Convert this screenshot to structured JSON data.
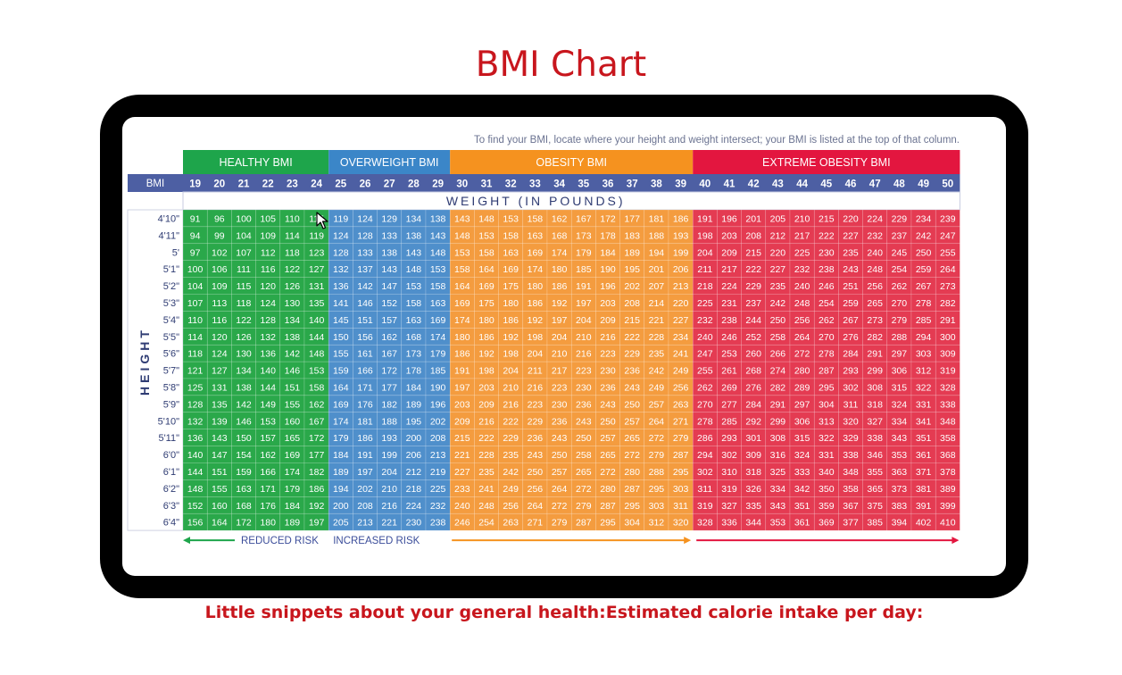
{
  "page": {
    "title": "BMI Chart",
    "footer": "Little snippets about your general health:Estimated calorie intake per day:"
  },
  "chart_data": {
    "type": "table",
    "instruction": "To find your BMI, locate where your height and weight intersect; your BMI is listed at the top of that column.",
    "row_header_label": "BMI",
    "weight_label": "WEIGHT (IN POUNDS)",
    "height_label": "HEIGHT",
    "bmi": [
      19,
      20,
      21,
      22,
      23,
      24,
      25,
      26,
      27,
      28,
      29,
      30,
      31,
      32,
      33,
      34,
      35,
      36,
      37,
      38,
      39,
      40,
      41,
      42,
      43,
      44,
      45,
      46,
      47,
      48,
      49,
      50
    ],
    "categories": [
      {
        "label": "HEALTHY BMI",
        "from": 19,
        "to": 24,
        "color": "#1ea54b",
        "cell_color": "#2aa84a"
      },
      {
        "label": "OVERWEIGHT BMI",
        "from": 25,
        "to": 29,
        "color": "#3b86c8",
        "cell_color": "#4f8fcb"
      },
      {
        "label": "OBESITY BMI",
        "from": 30,
        "to": 39,
        "color": "#f5921f",
        "cell_color": "#f49c3f"
      },
      {
        "label": "EXTREME OBESITY BMI",
        "from": 40,
        "to": 50,
        "color": "#e3163f",
        "cell_color": "#e43b52"
      }
    ],
    "rows": [
      {
        "height": "4'10\"",
        "weights": [
          91,
          96,
          100,
          105,
          110,
          115,
          119,
          124,
          129,
          134,
          138,
          143,
          148,
          153,
          158,
          162,
          167,
          172,
          177,
          181,
          186,
          191,
          196,
          201,
          205,
          210,
          215,
          220,
          224,
          229,
          234,
          239
        ]
      },
      {
        "height": "4'11\"",
        "weights": [
          94,
          99,
          104,
          109,
          114,
          119,
          124,
          128,
          133,
          138,
          143,
          148,
          153,
          158,
          163,
          168,
          173,
          178,
          183,
          188,
          193,
          198,
          203,
          208,
          212,
          217,
          222,
          227,
          232,
          237,
          242,
          247
        ]
      },
      {
        "height": "5'",
        "weights": [
          97,
          102,
          107,
          112,
          118,
          123,
          128,
          133,
          138,
          143,
          148,
          153,
          158,
          163,
          169,
          174,
          179,
          184,
          189,
          194,
          199,
          204,
          209,
          215,
          220,
          225,
          230,
          235,
          240,
          245,
          250,
          255
        ]
      },
      {
        "height": "5'1\"",
        "weights": [
          100,
          106,
          111,
          116,
          122,
          127,
          132,
          137,
          143,
          148,
          153,
          158,
          164,
          169,
          174,
          180,
          185,
          190,
          195,
          201,
          206,
          211,
          217,
          222,
          227,
          232,
          238,
          243,
          248,
          254,
          259,
          264
        ]
      },
      {
        "height": "5'2\"",
        "weights": [
          104,
          109,
          115,
          120,
          126,
          131,
          136,
          142,
          147,
          153,
          158,
          164,
          169,
          175,
          180,
          186,
          191,
          196,
          202,
          207,
          213,
          218,
          224,
          229,
          235,
          240,
          246,
          251,
          256,
          262,
          267,
          273
        ]
      },
      {
        "height": "5'3\"",
        "weights": [
          107,
          113,
          118,
          124,
          130,
          135,
          141,
          146,
          152,
          158,
          163,
          169,
          175,
          180,
          186,
          192,
          197,
          203,
          208,
          214,
          220,
          225,
          231,
          237,
          242,
          248,
          254,
          259,
          265,
          270,
          278,
          282
        ]
      },
      {
        "height": "5'4\"",
        "weights": [
          110,
          116,
          122,
          128,
          134,
          140,
          145,
          151,
          157,
          163,
          169,
          174,
          180,
          186,
          192,
          197,
          204,
          209,
          215,
          221,
          227,
          232,
          238,
          244,
          250,
          256,
          262,
          267,
          273,
          279,
          285,
          291
        ]
      },
      {
        "height": "5'5\"",
        "weights": [
          114,
          120,
          126,
          132,
          138,
          144,
          150,
          156,
          162,
          168,
          174,
          180,
          186,
          192,
          198,
          204,
          210,
          216,
          222,
          228,
          234,
          240,
          246,
          252,
          258,
          264,
          270,
          276,
          282,
          288,
          294,
          300
        ]
      },
      {
        "height": "5'6\"",
        "weights": [
          118,
          124,
          130,
          136,
          142,
          148,
          155,
          161,
          167,
          173,
          179,
          186,
          192,
          198,
          204,
          210,
          216,
          223,
          229,
          235,
          241,
          247,
          253,
          260,
          266,
          272,
          278,
          284,
          291,
          297,
          303,
          309
        ]
      },
      {
        "height": "5'7\"",
        "weights": [
          121,
          127,
          134,
          140,
          146,
          153,
          159,
          166,
          172,
          178,
          185,
          191,
          198,
          204,
          211,
          217,
          223,
          230,
          236,
          242,
          249,
          255,
          261,
          268,
          274,
          280,
          287,
          293,
          299,
          306,
          312,
          319
        ]
      },
      {
        "height": "5'8\"",
        "weights": [
          125,
          131,
          138,
          144,
          151,
          158,
          164,
          171,
          177,
          184,
          190,
          197,
          203,
          210,
          216,
          223,
          230,
          236,
          243,
          249,
          256,
          262,
          269,
          276,
          282,
          289,
          295,
          302,
          308,
          315,
          322,
          328
        ]
      },
      {
        "height": "5'9\"",
        "weights": [
          128,
          135,
          142,
          149,
          155,
          162,
          169,
          176,
          182,
          189,
          196,
          203,
          209,
          216,
          223,
          230,
          236,
          243,
          250,
          257,
          263,
          270,
          277,
          284,
          291,
          297,
          304,
          311,
          318,
          324,
          331,
          338
        ]
      },
      {
        "height": "5'10\"",
        "weights": [
          132,
          139,
          146,
          153,
          160,
          167,
          174,
          181,
          188,
          195,
          202,
          209,
          216,
          222,
          229,
          236,
          243,
          250,
          257,
          264,
          271,
          278,
          285,
          292,
          299,
          306,
          313,
          320,
          327,
          334,
          341,
          348
        ]
      },
      {
        "height": "5'11\"",
        "weights": [
          136,
          143,
          150,
          157,
          165,
          172,
          179,
          186,
          193,
          200,
          208,
          215,
          222,
          229,
          236,
          243,
          250,
          257,
          265,
          272,
          279,
          286,
          293,
          301,
          308,
          315,
          322,
          329,
          338,
          343,
          351,
          358
        ]
      },
      {
        "height": "6'0\"",
        "weights": [
          140,
          147,
          154,
          162,
          169,
          177,
          184,
          191,
          199,
          206,
          213,
          221,
          228,
          235,
          243,
          250,
          258,
          265,
          272,
          279,
          287,
          294,
          302,
          309,
          316,
          324,
          331,
          338,
          346,
          353,
          361,
          368
        ]
      },
      {
        "height": "6'1\"",
        "weights": [
          144,
          151,
          159,
          166,
          174,
          182,
          189,
          197,
          204,
          212,
          219,
          227,
          235,
          242,
          250,
          257,
          265,
          272,
          280,
          288,
          295,
          302,
          310,
          318,
          325,
          333,
          340,
          348,
          355,
          363,
          371,
          378
        ]
      },
      {
        "height": "6'2\"",
        "weights": [
          148,
          155,
          163,
          171,
          179,
          186,
          194,
          202,
          210,
          218,
          225,
          233,
          241,
          249,
          256,
          264,
          272,
          280,
          287,
          295,
          303,
          311,
          319,
          326,
          334,
          342,
          350,
          358,
          365,
          373,
          381,
          389
        ]
      },
      {
        "height": "6'3\"",
        "weights": [
          152,
          160,
          168,
          176,
          184,
          192,
          200,
          208,
          216,
          224,
          232,
          240,
          248,
          256,
          264,
          272,
          279,
          287,
          295,
          303,
          311,
          319,
          327,
          335,
          343,
          351,
          359,
          367,
          375,
          383,
          391,
          399
        ]
      },
      {
        "height": "6'4\"",
        "weights": [
          156,
          164,
          172,
          180,
          189,
          197,
          205,
          213,
          221,
          230,
          238,
          246,
          254,
          263,
          271,
          279,
          287,
          295,
          304,
          312,
          320,
          328,
          336,
          344,
          353,
          361,
          369,
          377,
          385,
          394,
          402,
          410
        ]
      }
    ],
    "footer_labels": {
      "reduced_risk": "REDUCED RISK",
      "increased_risk": "INCREASED RISK"
    },
    "header_bg": "#4d5fa3",
    "text_color": "#2f3c73"
  }
}
